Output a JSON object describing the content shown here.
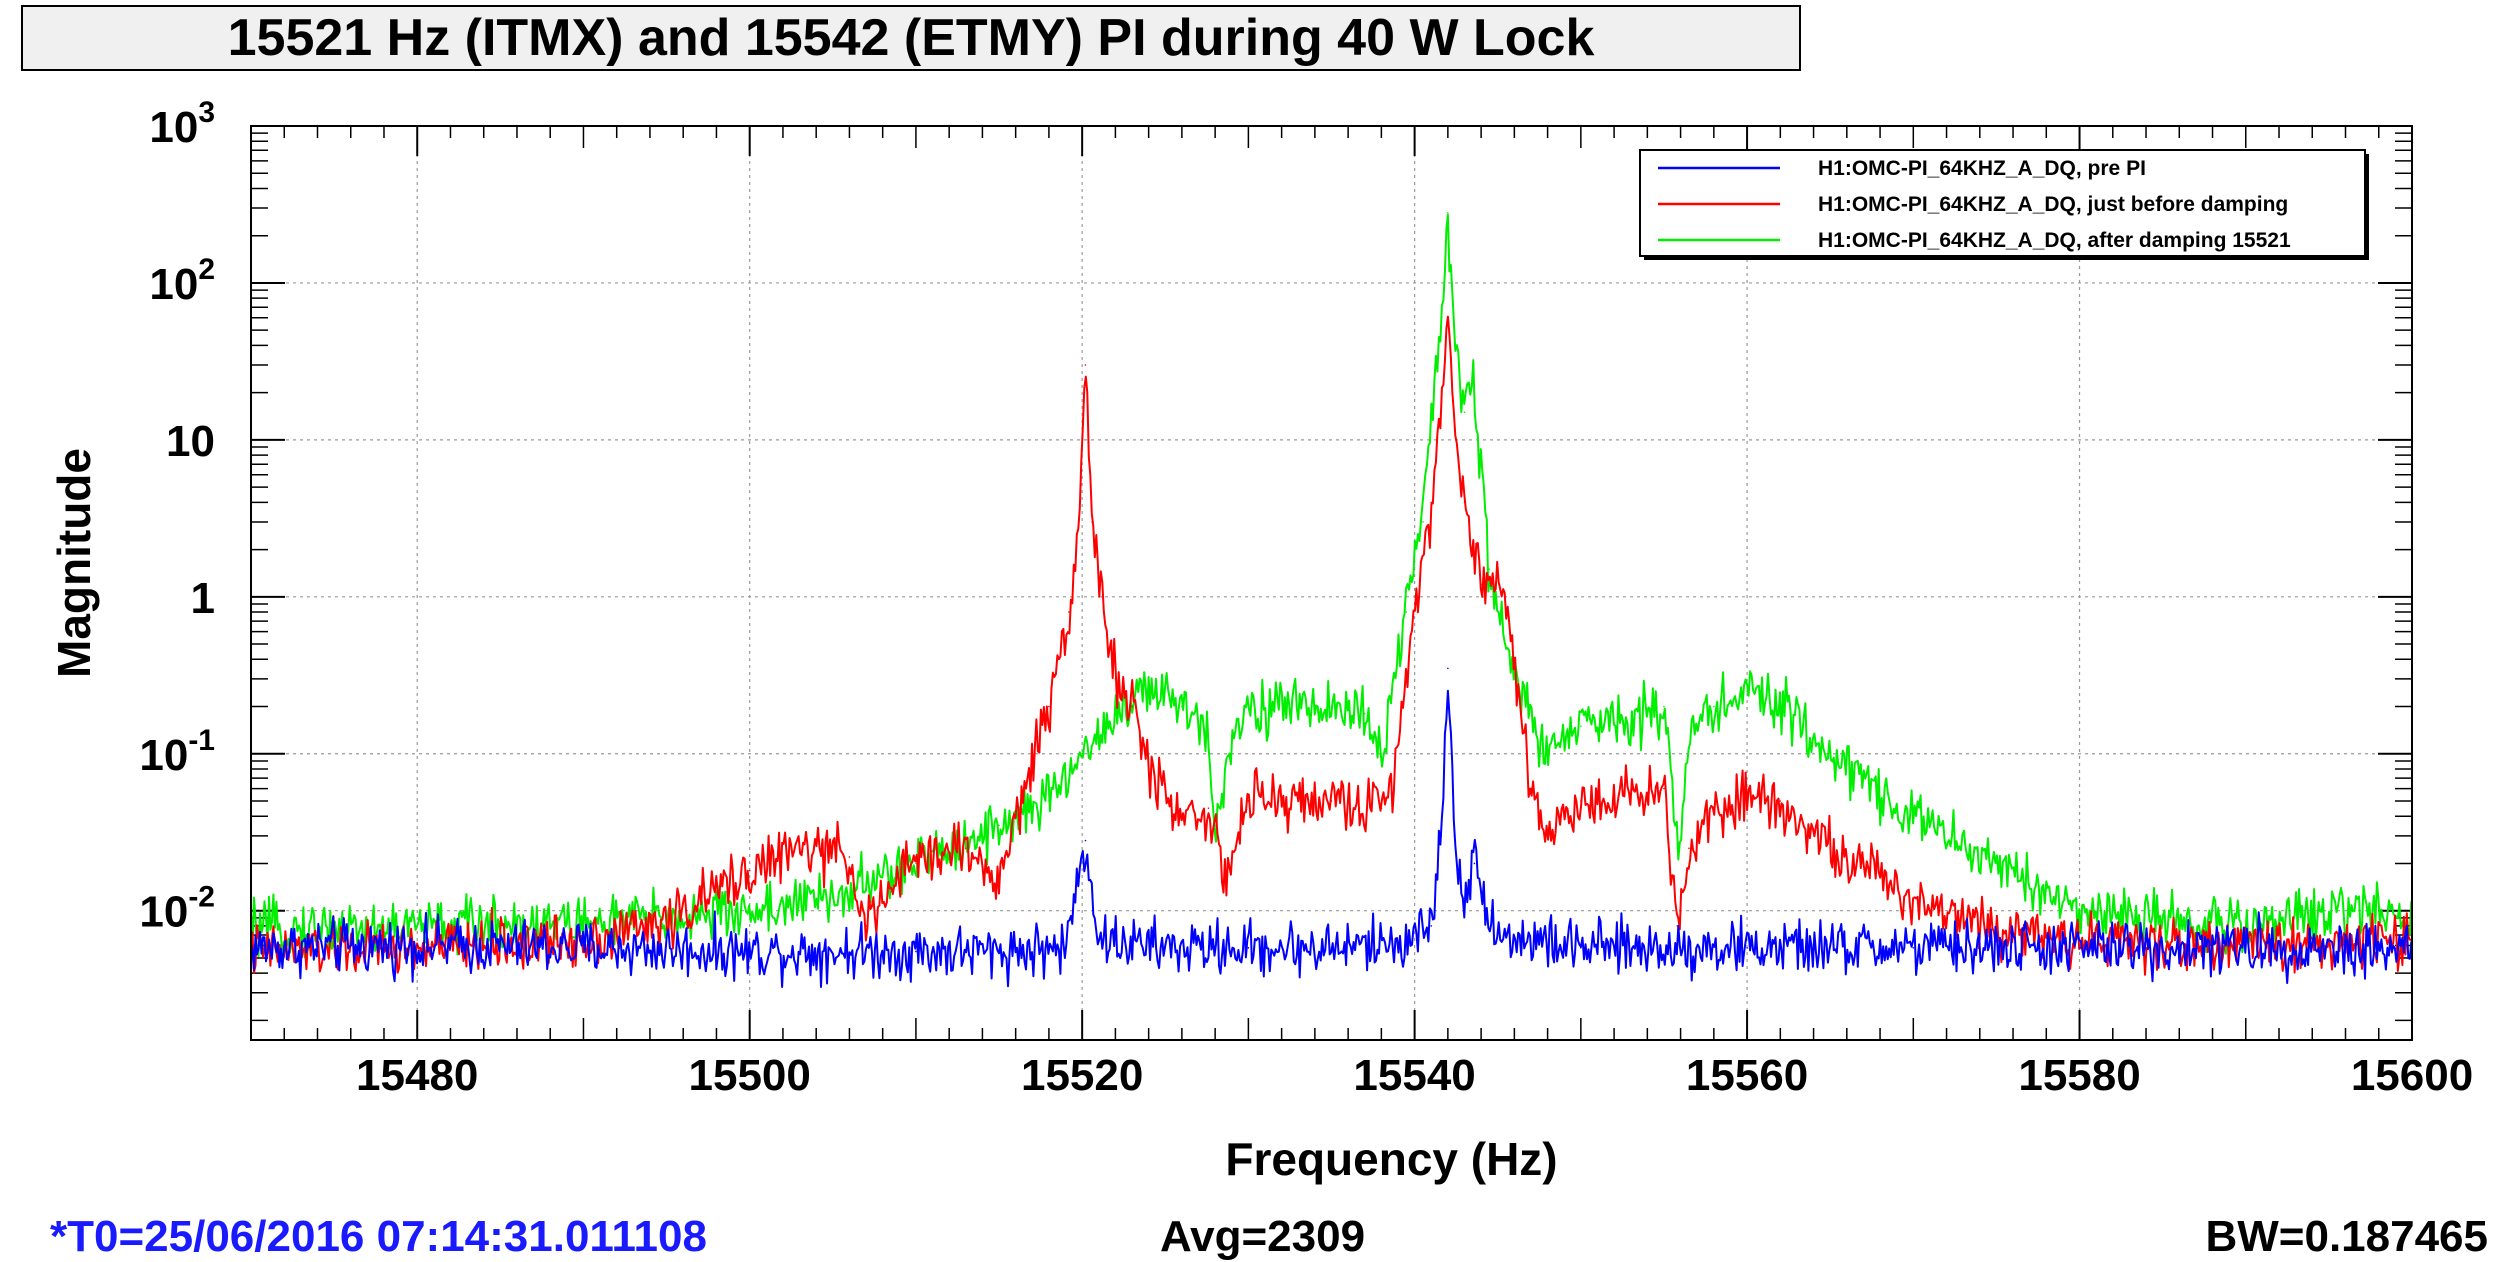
{
  "chart_data": {
    "type": "line",
    "title": "15521 Hz (ITMX) and 15542 (ETMY) PI during 40 W Lock",
    "xlabel": "Frequency (Hz)",
    "ylabel": "Magnitude",
    "xlim": [
      15470,
      15600
    ],
    "ylim": [
      0.0015,
      1000
    ],
    "yscale": "log",
    "grid": true,
    "legend_position": "top-right",
    "x_ticks": [
      {
        "value": 15480,
        "label": "15480"
      },
      {
        "value": 15500,
        "label": "15500"
      },
      {
        "value": 15520,
        "label": "15520"
      },
      {
        "value": 15540,
        "label": "15540"
      },
      {
        "value": 15560,
        "label": "15560"
      },
      {
        "value": 15580,
        "label": "15580"
      },
      {
        "value": 15600,
        "label": "15600"
      }
    ],
    "y_ticks": [
      {
        "value": 0.01,
        "base": "10",
        "exp": "-2"
      },
      {
        "value": 0.1,
        "base": "10",
        "exp": "-1"
      },
      {
        "value": 1,
        "base": "1",
        "exp": ""
      },
      {
        "value": 10,
        "base": "10",
        "exp": ""
      },
      {
        "value": 100,
        "base": "10",
        "exp": "2"
      },
      {
        "value": 1000,
        "base": "10",
        "exp": "3"
      }
    ],
    "series": [
      {
        "name": "H1:OMC-PI_64KHZ_A_DQ,  pre PI",
        "color": "#0000ff",
        "x": [
          15470,
          15480,
          15490,
          15500,
          15510,
          15515,
          15519,
          15520.2,
          15521,
          15525,
          15530,
          15535,
          15539,
          15541,
          15541.6,
          15542.0,
          15542.4,
          15543,
          15543.6,
          15545,
          15550,
          15560,
          15570,
          15580,
          15590,
          15600
        ],
        "values": [
          0.0058,
          0.006,
          0.0058,
          0.0055,
          0.0055,
          0.0055,
          0.0058,
          0.028,
          0.0065,
          0.0058,
          0.0058,
          0.0058,
          0.0062,
          0.008,
          0.03,
          0.35,
          0.03,
          0.012,
          0.02,
          0.007,
          0.0058,
          0.0058,
          0.0058,
          0.0058,
          0.0058,
          0.0058
        ]
      },
      {
        "name": "H1:OMC-PI_64KHZ_A_DQ, just before damping",
        "color": "#ff0000",
        "x": [
          15470,
          15480,
          15490,
          15495,
          15500,
          15503,
          15506,
          15507,
          15510,
          15513,
          15515,
          15516.5,
          15518,
          15519.2,
          15519.8,
          15520.2,
          15520.6,
          15521.2,
          15522,
          15523,
          15524,
          15526,
          15527.6,
          15528.5,
          15530,
          15535,
          15538,
          15538.8,
          15540,
          15541,
          15541.6,
          15542.0,
          15542.4,
          15543,
          15544,
          15545,
          15546,
          15547,
          15548,
          15550,
          15555,
          15555.8,
          15556.5,
          15558,
          15560,
          15562,
          15565,
          15570,
          15575,
          15580,
          15590,
          15600
        ],
        "values": [
          0.0055,
          0.0058,
          0.0065,
          0.0085,
          0.018,
          0.025,
          0.022,
          0.008,
          0.022,
          0.025,
          0.015,
          0.06,
          0.2,
          0.8,
          3,
          30,
          3,
          1,
          0.3,
          0.2,
          0.08,
          0.04,
          0.045,
          0.015,
          0.05,
          0.05,
          0.045,
          0.08,
          0.9,
          4,
          15,
          60,
          12,
          4,
          1.2,
          1.5,
          0.4,
          0.06,
          0.03,
          0.05,
          0.06,
          0.008,
          0.025,
          0.045,
          0.055,
          0.05,
          0.025,
          0.012,
          0.008,
          0.0065,
          0.006,
          0.0065
        ]
      },
      {
        "name": "H1:OMC-PI_64KHZ_A_DQ, after damping 15521",
        "color": "#00ee00",
        "x": [
          15470,
          15480,
          15490,
          15495,
          15500,
          15505,
          15510,
          15515,
          15518,
          15520,
          15522,
          15524,
          15526,
          15527.5,
          15528,
          15529,
          15530,
          15535,
          15537,
          15538,
          15539.5,
          15540.5,
          15541,
          15541.6,
          15542.0,
          15542.4,
          15543,
          15543.5,
          15544.5,
          15546,
          15548,
          15550,
          15555,
          15555.8,
          15556.6,
          15558,
          15560,
          15562,
          15565,
          15570,
          15575,
          15580,
          15590,
          15598,
          15600
        ],
        "values": [
          0.0075,
          0.008,
          0.0085,
          0.009,
          0.01,
          0.012,
          0.02,
          0.035,
          0.05,
          0.1,
          0.18,
          0.25,
          0.2,
          0.15,
          0.035,
          0.13,
          0.2,
          0.2,
          0.18,
          0.1,
          0.8,
          3,
          15,
          60,
          280,
          40,
          15,
          25,
          1.5,
          0.3,
          0.1,
          0.15,
          0.2,
          0.025,
          0.13,
          0.2,
          0.25,
          0.2,
          0.1,
          0.04,
          0.02,
          0.01,
          0.008,
          0.011,
          0.0085
        ]
      }
    ],
    "annotations": {
      "t0": "*T0=25/06/2016 07:14:31.011108",
      "avg": "Avg=2309",
      "bw": "BW=0.187465"
    }
  }
}
